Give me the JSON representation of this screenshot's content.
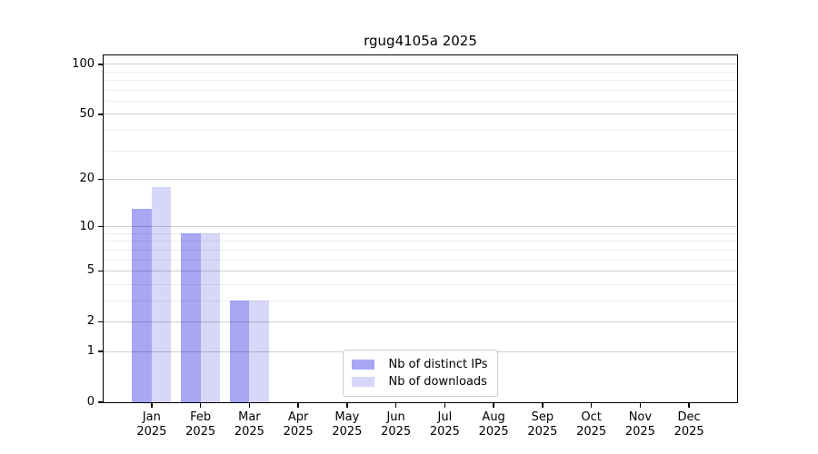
{
  "figure": {
    "background": "#ffffff"
  },
  "chart_data": {
    "type": "bar",
    "title": "rgug4105a 2025",
    "x": {
      "categories": [
        "Jan",
        "Feb",
        "Mar",
        "Apr",
        "May",
        "Jun",
        "Jul",
        "Aug",
        "Sep",
        "Oct",
        "Nov",
        "Dec"
      ],
      "year": "2025"
    },
    "series": [
      {
        "name": "Nb of distinct IPs",
        "color": "#a7a7f4",
        "values": [
          13,
          9,
          3,
          0,
          0,
          0,
          0,
          0,
          0,
          0,
          0,
          0
        ]
      },
      {
        "name": "Nb of downloads",
        "color": "#d7d7fa",
        "values": [
          18,
          9,
          3,
          0,
          0,
          0,
          0,
          0,
          0,
          0,
          0,
          0
        ]
      }
    ],
    "y_axis": {
      "scale": "log1p",
      "ticks": [
        0,
        1,
        2,
        5,
        10,
        20,
        50,
        100
      ],
      "minor_ticks": [
        3,
        4,
        6,
        7,
        8,
        9,
        30,
        40,
        60,
        70,
        80,
        90
      ],
      "top_value": 113,
      "range": [
        0,
        113
      ]
    },
    "grid": {
      "major_color": "rgba(0,0,0,0.19)",
      "minor_color": "rgba(0,0,0,0.07)"
    },
    "legend": {
      "position": "lower center"
    }
  }
}
